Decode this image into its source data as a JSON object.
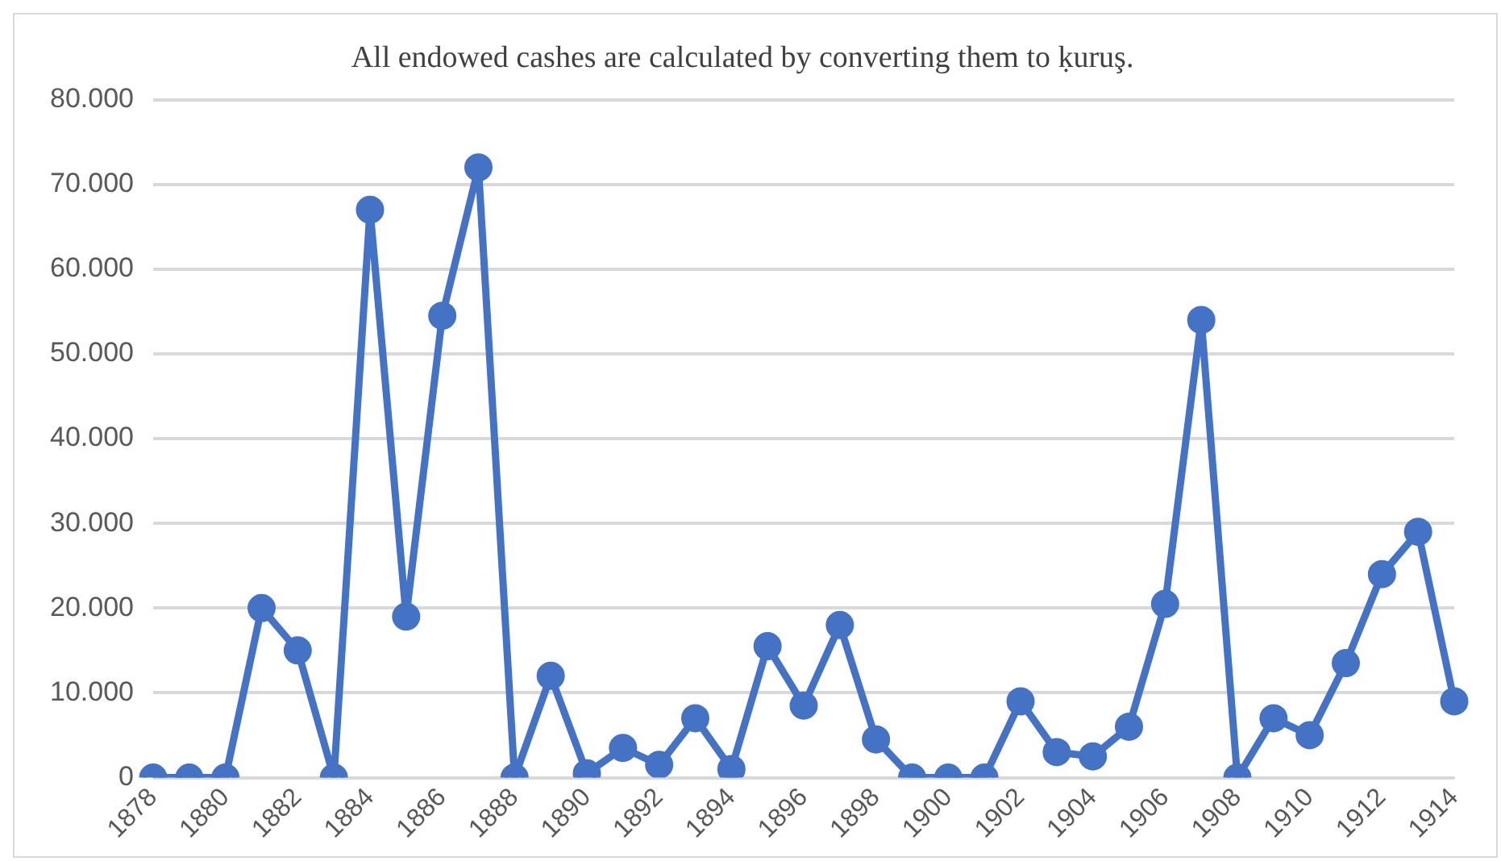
{
  "chart_data": {
    "type": "line",
    "title": "All endowed cashes are calculated by converting them to ḳuruş.",
    "categories": [
      "1878",
      null,
      "1880",
      null,
      "1882",
      null,
      "1884",
      null,
      "1886",
      null,
      "1888",
      null,
      "1890",
      null,
      "1892",
      null,
      "1894",
      null,
      "1896",
      null,
      "1898",
      null,
      "1900",
      null,
      "1902",
      null,
      "1904",
      null,
      "1906",
      null,
      "1908",
      null,
      "1910",
      null,
      "1912",
      null,
      "1914"
    ],
    "series": [
      {
        "color": "#4472c4",
        "values": [
          0,
          0,
          0,
          20000,
          15000,
          0,
          67000,
          19000,
          54500,
          72000,
          0,
          12000,
          500,
          3500,
          1500,
          7000,
          1000,
          15500,
          8500,
          18000,
          4500,
          0,
          0,
          0,
          9000,
          3000,
          2500,
          6000,
          20500,
          54000,
          0,
          7000,
          5000,
          13500,
          24000,
          29000,
          9000
        ]
      }
    ],
    "ylim": [
      0,
      80000
    ],
    "yticks": [
      {
        "value": 0,
        "label": "0"
      },
      {
        "value": 10000,
        "label": "10.000"
      },
      {
        "value": 20000,
        "label": "20.000"
      },
      {
        "value": 30000,
        "label": "30.000"
      },
      {
        "value": 40000,
        "label": "40.000"
      },
      {
        "value": 50000,
        "label": "50.000"
      },
      {
        "value": 60000,
        "label": "60.000"
      },
      {
        "value": 70000,
        "label": "70.000"
      },
      {
        "value": 80000,
        "label": "80.000"
      }
    ],
    "grid": "y",
    "marker": "circle",
    "line_style": "solid",
    "legend": false
  }
}
